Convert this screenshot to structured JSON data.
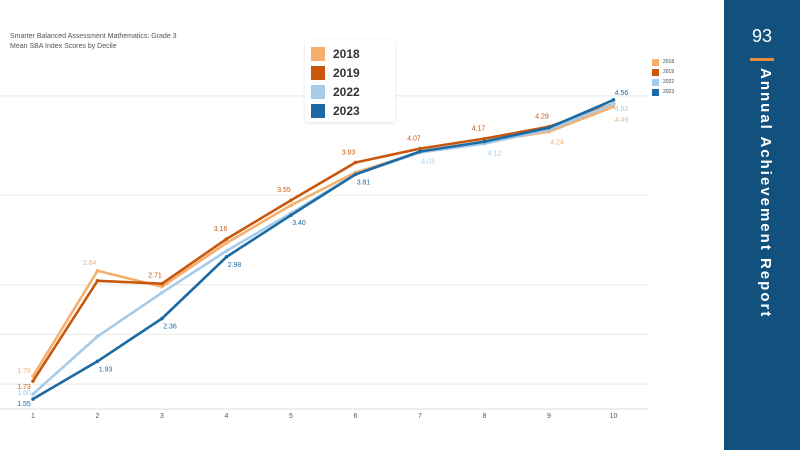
{
  "page": {
    "number": "93",
    "side_title": "Annual    Achievement    Report",
    "accent_color": "#e88a3a",
    "panel_color": "#12507e"
  },
  "chart_data": {
    "type": "line",
    "title": "Smarter Balanced Assessment Mathematics: Grade 3",
    "subtitle": "Mean SBA Index Scores by Decile",
    "x": [
      1,
      2,
      3,
      4,
      5,
      6,
      7,
      8,
      9,
      10
    ],
    "ylim": [
      1.5,
      4.8
    ],
    "grid": "horizontal",
    "series": [
      {
        "name": "2018",
        "color": "#f5b06e",
        "values": [
          1.78,
          2.84,
          2.68,
          3.12,
          3.5,
          3.83,
          4.03,
          4.14,
          4.24,
          4.49
        ]
      },
      {
        "name": "2019",
        "color": "#c8570d",
        "values": [
          1.73,
          2.74,
          2.71,
          3.16,
          3.55,
          3.93,
          4.07,
          4.17,
          4.29,
          4.52
        ]
      },
      {
        "name": "2022",
        "color": "#a6cbe8",
        "values": [
          1.6,
          2.18,
          2.62,
          3.04,
          3.42,
          3.81,
          4.03,
          4.12,
          4.26,
          4.52
        ]
      },
      {
        "name": "2023",
        "color": "#1c6aa3",
        "values": [
          1.55,
          1.93,
          2.36,
          2.98,
          3.4,
          3.81,
          4.04,
          4.14,
          4.28,
          4.56
        ]
      }
    ],
    "data_labels": [
      {
        "series": 0,
        "index": 0,
        "text": "1.78"
      },
      {
        "series": 1,
        "index": 0,
        "text": "1.73"
      },
      {
        "series": 2,
        "index": 0,
        "text": "1.60"
      },
      {
        "series": 3,
        "index": 0,
        "text": "1.55"
      },
      {
        "series": 0,
        "index": 1,
        "text": "2.84"
      },
      {
        "series": 3,
        "index": 1,
        "text": "1.93"
      },
      {
        "series": 1,
        "index": 2,
        "text": "2.71"
      },
      {
        "series": 3,
        "index": 2,
        "text": "2.36"
      },
      {
        "series": 1,
        "index": 3,
        "text": "3.16"
      },
      {
        "series": 3,
        "index": 3,
        "text": "2.98"
      },
      {
        "series": 1,
        "index": 4,
        "text": "3.55"
      },
      {
        "series": 3,
        "index": 4,
        "text": "3.40"
      },
      {
        "series": 1,
        "index": 5,
        "text": "3.93"
      },
      {
        "series": 3,
        "index": 5,
        "text": "3.81"
      },
      {
        "series": 1,
        "index": 6,
        "text": "4.07"
      },
      {
        "series": 2,
        "index": 6,
        "text": "4.03"
      },
      {
        "series": 1,
        "index": 7,
        "text": "4.17"
      },
      {
        "series": 2,
        "index": 7,
        "text": "4.12"
      },
      {
        "series": 1,
        "index": 8,
        "text": "4.29"
      },
      {
        "series": 0,
        "index": 8,
        "text": "4.24"
      },
      {
        "series": 3,
        "index": 9,
        "text": "4.56"
      },
      {
        "series": 2,
        "index": 9,
        "text": "4.52"
      },
      {
        "series": 0,
        "index": 9,
        "text": "4.49"
      }
    ]
  }
}
